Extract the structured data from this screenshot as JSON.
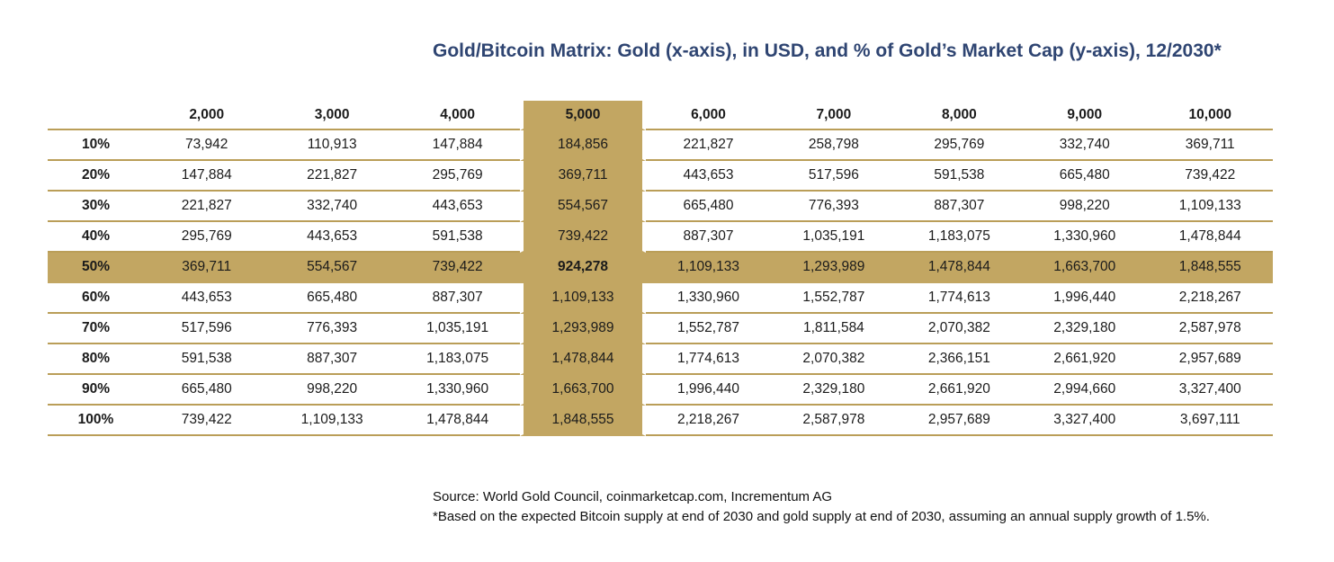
{
  "title": "Gold/Bitcoin Matrix: Gold (x-axis), in USD, and % of Gold’s Market Cap (y-axis), 12/2030*",
  "source": "Source: World Gold Council, coinmarketcap.com, Incrementum AG",
  "footnote": "*Based on the expected Bitcoin supply at end of 2030 and gold supply at end of 2030, assuming an annual supply growth of 1.5%.",
  "colors": {
    "title_text": "#2F4572",
    "highlight": "#C2A662",
    "grid_line": "#BA9E58",
    "body_text": "#1b1b1b"
  },
  "chart_data": {
    "type": "table",
    "title": "Gold/Bitcoin Matrix: Gold (x-axis), in USD, and % of Gold’s Market Cap (y-axis), 12/2030*",
    "xlabel": "Gold price in USD",
    "ylabel": "% of Gold's Market Cap",
    "columns": [
      "2,000",
      "3,000",
      "4,000",
      "5,000",
      "6,000",
      "7,000",
      "8,000",
      "9,000",
      "10,000"
    ],
    "highlight_column": "5,000",
    "highlight_col_index": 3,
    "highlight_row": "50%",
    "highlight_row_index": 4,
    "rows": [
      {
        "label": "10%",
        "values": [
          "73,942",
          "110,913",
          "147,884",
          "184,856",
          "221,827",
          "258,798",
          "295,769",
          "332,740",
          "369,711"
        ]
      },
      {
        "label": "20%",
        "values": [
          "147,884",
          "221,827",
          "295,769",
          "369,711",
          "443,653",
          "517,596",
          "591,538",
          "665,480",
          "739,422"
        ]
      },
      {
        "label": "30%",
        "values": [
          "221,827",
          "332,740",
          "443,653",
          "554,567",
          "665,480",
          "776,393",
          "887,307",
          "998,220",
          "1,109,133"
        ]
      },
      {
        "label": "40%",
        "values": [
          "295,769",
          "443,653",
          "591,538",
          "739,422",
          "887,307",
          "1,035,191",
          "1,183,075",
          "1,330,960",
          "1,478,844"
        ]
      },
      {
        "label": "50%",
        "values": [
          "369,711",
          "554,567",
          "739,422",
          "924,278",
          "1,109,133",
          "1,293,989",
          "1,478,844",
          "1,663,700",
          "1,848,555"
        ]
      },
      {
        "label": "60%",
        "values": [
          "443,653",
          "665,480",
          "887,307",
          "1,109,133",
          "1,330,960",
          "1,552,787",
          "1,774,613",
          "1,996,440",
          "2,218,267"
        ]
      },
      {
        "label": "70%",
        "values": [
          "517,596",
          "776,393",
          "1,035,191",
          "1,293,989",
          "1,552,787",
          "1,811,584",
          "2,070,382",
          "2,329,180",
          "2,587,978"
        ]
      },
      {
        "label": "80%",
        "values": [
          "591,538",
          "887,307",
          "1,183,075",
          "1,478,844",
          "1,774,613",
          "2,070,382",
          "2,366,151",
          "2,661,920",
          "2,957,689"
        ]
      },
      {
        "label": "90%",
        "values": [
          "665,480",
          "998,220",
          "1,330,960",
          "1,663,700",
          "1,996,440",
          "2,329,180",
          "2,661,920",
          "2,994,660",
          "3,327,400"
        ]
      },
      {
        "label": "100%",
        "values": [
          "739,422",
          "1,109,133",
          "1,478,844",
          "1,848,555",
          "2,218,267",
          "2,587,978",
          "2,957,689",
          "3,327,400",
          "3,697,111"
        ]
      }
    ]
  }
}
